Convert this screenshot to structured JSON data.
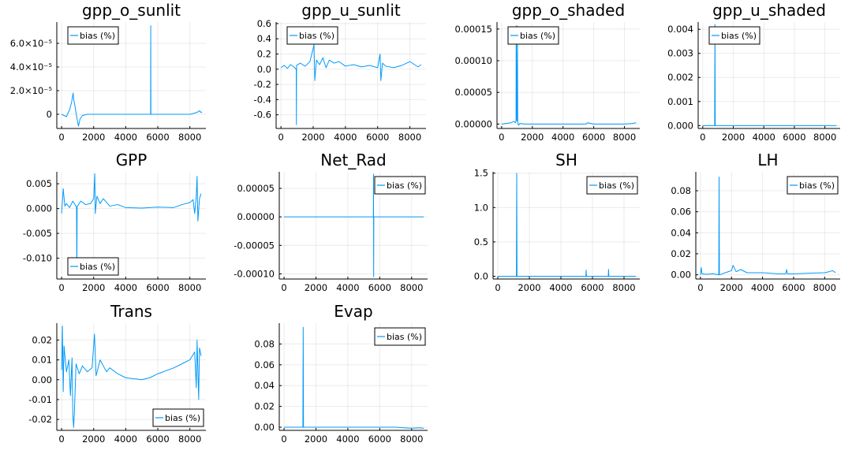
{
  "colors": {
    "series": "#009AFA",
    "axis": "#000000",
    "grid": "#E6E6E6"
  },
  "chart_data": [
    {
      "type": "line",
      "title": "gpp_o_sunlit",
      "legend_position": "top-left",
      "xlim": [
        -300,
        9000
      ],
      "ylim": [
        -1.2e-05,
        7.8e-05
      ],
      "xticks": [
        0,
        2000,
        4000,
        6000,
        8000
      ],
      "xtick_labels": [
        "0",
        "2000",
        "4000",
        "6000",
        "8000"
      ],
      "yticks": [
        0,
        2e-05,
        4e-05,
        6e-05
      ],
      "ytick_labels": [
        "0",
        "2.0×10⁻⁵",
        "4.0×10⁻⁵",
        "6.0×10⁻⁵"
      ],
      "series": [
        {
          "name": "bias (%)",
          "x": [
            0,
            300,
            500,
            620,
            680,
            720,
            760,
            820,
            880,
            950,
            1050,
            1150,
            1300,
            1600,
            2000,
            3000,
            4000,
            5000,
            5550,
            5560,
            5570,
            6000,
            7000,
            8000,
            8300,
            8500,
            8600,
            8700,
            8760
          ],
          "y": [
            0,
            -2e-06,
            4e-06,
            1e-05,
            1.5e-05,
            1.8e-05,
            1.2e-05,
            8e-06,
            3e-06,
            -3e-06,
            -1e-05,
            -4e-06,
            -1e-06,
            0,
            0,
            0,
            0,
            0,
            0,
            7.5e-05,
            0,
            0,
            0,
            0,
            1e-06,
            2e-06,
            3e-06,
            1.5e-06,
            2e-06
          ]
        }
      ]
    },
    {
      "type": "line",
      "title": "gpp_u_sunlit",
      "legend_position": "top-left",
      "xlim": [
        -300,
        9000
      ],
      "ylim": [
        -0.78,
        0.62
      ],
      "xticks": [
        0,
        2000,
        4000,
        6000,
        8000
      ],
      "xtick_labels": [
        "0",
        "2000",
        "4000",
        "6000",
        "8000"
      ],
      "yticks": [
        -0.6,
        -0.4,
        -0.2,
        0,
        0.2,
        0.4,
        0.6
      ],
      "ytick_labels": [
        "-0.6",
        "-0.4",
        "-0.2",
        "0.0",
        "0.2",
        "0.4",
        "0.6"
      ],
      "series": [
        {
          "name": "bias (%)",
          "x": [
            0,
            200,
            400,
            600,
            800,
            950,
            960,
            970,
            1200,
            1500,
            1800,
            2050,
            2100,
            2200,
            2400,
            2600,
            2800,
            3000,
            3300,
            3600,
            4000,
            4500,
            5000,
            5500,
            6000,
            6150,
            6200,
            6300,
            6500,
            7000,
            7500,
            8000,
            8500,
            8700
          ],
          "y": [
            0.02,
            0.05,
            0.01,
            0.06,
            0.03,
            0.0,
            -0.73,
            0.05,
            0.08,
            0.04,
            0.1,
            0.32,
            -0.15,
            0.12,
            0.06,
            0.15,
            0.02,
            0.12,
            0.08,
            0.1,
            0.04,
            0.06,
            0.03,
            0.05,
            0.02,
            0.2,
            -0.15,
            0.08,
            0.04,
            0.02,
            0.05,
            0.1,
            0.03,
            0.06
          ]
        }
      ]
    },
    {
      "type": "line",
      "title": "gpp_o_shaded",
      "legend_position": "top-left",
      "xlim": [
        -300,
        9000
      ],
      "ylim": [
        -7e-06,
        0.000161
      ],
      "xticks": [
        0,
        2000,
        4000,
        6000,
        8000
      ],
      "xtick_labels": [
        "0",
        "2000",
        "4000",
        "6000",
        "8000"
      ],
      "yticks": [
        0,
        5e-05,
        0.0001,
        0.00015
      ],
      "ytick_labels": [
        "0.00000",
        "0.00005",
        "0.00010",
        "0.00015"
      ],
      "series": [
        {
          "name": "bias (%)",
          "x": [
            0,
            300,
            600,
            800,
            900,
            940,
            950,
            980,
            1000,
            1030,
            1050,
            1100,
            1200,
            1500,
            2000,
            3000,
            4000,
            5000,
            5500,
            5600,
            6000,
            7000,
            8000,
            8500,
            8760
          ],
          "y": [
            0,
            1e-06,
            2e-06,
            4e-06,
            2e-06,
            5e-06,
            0.000155,
            2e-05,
            5e-06,
            0.000155,
            3e-06,
            -2e-06,
            1e-06,
            0,
            0,
            0,
            0,
            0,
            0,
            2e-06,
            0,
            0,
            0,
            1e-06,
            2e-06
          ]
        }
      ]
    },
    {
      "type": "line",
      "title": "gpp_u_shaded",
      "legend_position": "top-left",
      "xlim": [
        -300,
        9000
      ],
      "ylim": [
        -0.00012,
        0.0043
      ],
      "xticks": [
        0,
        2000,
        4000,
        6000,
        8000
      ],
      "xtick_labels": [
        "0",
        "2000",
        "4000",
        "6000",
        "8000"
      ],
      "yticks": [
        0,
        0.001,
        0.002,
        0.003,
        0.004
      ],
      "ytick_labels": [
        "0.000",
        "0.001",
        "0.002",
        "0.003",
        "0.004"
      ],
      "series": [
        {
          "name": "bias (%)",
          "x": [
            0,
            400,
            780,
            800,
            820,
            1200,
            2000,
            4000,
            6000,
            8000,
            8760
          ],
          "y": [
            0,
            0,
            0,
            0.0042,
            0,
            0,
            0,
            0,
            0,
            0,
            0
          ]
        }
      ]
    },
    {
      "type": "line",
      "title": "GPP",
      "legend_position": "bottom-left",
      "xlim": [
        -300,
        9000
      ],
      "ylim": [
        -0.0142,
        0.0074
      ],
      "xticks": [
        0,
        2000,
        4000,
        6000,
        8000
      ],
      "xtick_labels": [
        "0",
        "2000",
        "4000",
        "6000",
        "8000"
      ],
      "yticks": [
        -0.01,
        -0.005,
        0,
        0.005
      ],
      "ytick_labels": [
        "-0.010",
        "-0.005",
        "0.000",
        "0.005"
      ],
      "series": [
        {
          "name": "bias (%)",
          "x": [
            0,
            100,
            200,
            300,
            500,
            700,
            930,
            950,
            970,
            1200,
            1500,
            1800,
            2000,
            2070,
            2100,
            2200,
            2400,
            2600,
            3000,
            3500,
            4000,
            5000,
            6000,
            7000,
            7500,
            8000,
            8200,
            8300,
            8400,
            8450,
            8500,
            8600,
            8700
          ],
          "y": [
            -0.001,
            0.004,
            0.0005,
            0.001,
            0.0002,
            0.0015,
            0.0003,
            -0.013,
            0.0004,
            0.0015,
            0.0008,
            0.001,
            0.002,
            0.007,
            -0.001,
            0.0025,
            0.001,
            0.002,
            0.0005,
            0.0008,
            0.0002,
            0.0001,
            0.0003,
            0.0002,
            0.0008,
            0.0012,
            0.0018,
            -0.001,
            0.0025,
            0.0065,
            -0.0025,
            0.002,
            0.003
          ]
        }
      ]
    },
    {
      "type": "line",
      "title": "Net_Rad",
      "legend_position": "top-right",
      "xlim": [
        -300,
        9000
      ],
      "ylim": [
        -0.000109,
        7.9e-05
      ],
      "xticks": [
        0,
        2000,
        4000,
        6000,
        8000
      ],
      "xtick_labels": [
        "0",
        "2000",
        "4000",
        "6000",
        "8000"
      ],
      "yticks": [
        -0.0001,
        -5e-05,
        0,
        5e-05
      ],
      "ytick_labels": [
        "-0.00010",
        "-0.00005",
        "0.00000",
        "0.00005"
      ],
      "series": [
        {
          "name": "bias (%)",
          "x": [
            0,
            2000,
            4000,
            5600,
            5610,
            5620,
            5630,
            6000,
            8000,
            8760
          ],
          "y": [
            0,
            0,
            0,
            0,
            7.5e-05,
            -0.000105,
            0,
            0,
            0,
            0
          ]
        }
      ]
    },
    {
      "type": "line",
      "title": "SH",
      "legend_position": "top-right",
      "xlim": [
        -300,
        9000
      ],
      "ylim": [
        -0.04,
        1.52
      ],
      "xticks": [
        0,
        2000,
        4000,
        6000,
        8000
      ],
      "xtick_labels": [
        "0",
        "2000",
        "4000",
        "6000",
        "8000"
      ],
      "yticks": [
        0,
        0.5,
        1.0,
        1.5
      ],
      "ytick_labels": [
        "0.0",
        "0.5",
        "1.0",
        "1.5"
      ],
      "series": [
        {
          "name": "bias (%)",
          "x": [
            0,
            600,
            1180,
            1200,
            1220,
            2000,
            4000,
            5580,
            5600,
            5620,
            6000,
            7000,
            7020,
            7040,
            8000,
            8760
          ],
          "y": [
            0,
            0,
            0,
            1.5,
            0,
            0,
            0,
            0,
            0.09,
            0,
            0,
            0,
            0.1,
            0,
            0,
            0
          ]
        }
      ]
    },
    {
      "type": "line",
      "title": "LH",
      "legend_position": "top-right",
      "xlim": [
        -300,
        9000
      ],
      "ylim": [
        -0.004,
        0.098
      ],
      "xticks": [
        0,
        2000,
        4000,
        6000,
        8000
      ],
      "xtick_labels": [
        "0",
        "2000",
        "4000",
        "6000",
        "8000"
      ],
      "yticks": [
        0,
        0.02,
        0.04,
        0.06,
        0.08
      ],
      "ytick_labels": [
        "0.00",
        "0.02",
        "0.04",
        "0.06",
        "0.08"
      ],
      "series": [
        {
          "name": "bias (%)",
          "x": [
            0,
            50,
            100,
            400,
            800,
            1180,
            1200,
            1220,
            1600,
            2000,
            2100,
            2300,
            2600,
            3000,
            4000,
            5000,
            5500,
            5550,
            5600,
            6000,
            7000,
            8000,
            8300,
            8500,
            8700
          ],
          "y": [
            0,
            0.007,
            0.001,
            0.0005,
            0.001,
            0,
            0.093,
            0,
            0.002,
            0.004,
            0.009,
            0.003,
            0.005,
            0.002,
            0.002,
            0.001,
            0.001,
            0.005,
            0.001,
            0.001,
            0.0015,
            0.002,
            0.003,
            0.004,
            0.002
          ]
        }
      ]
    },
    {
      "type": "line",
      "title": "Trans",
      "legend_position": "bottom-right",
      "xlim": [
        -300,
        9000
      ],
      "ylim": [
        -0.0255,
        0.0285
      ],
      "xticks": [
        0,
        2000,
        4000,
        6000,
        8000
      ],
      "xtick_labels": [
        "0",
        "2000",
        "4000",
        "6000",
        "8000"
      ],
      "yticks": [
        -0.02,
        -0.01,
        0,
        0.01,
        0.02
      ],
      "ytick_labels": [
        "-0.02",
        "-0.01",
        "0.00",
        "0.01",
        "0.02"
      ],
      "series": [
        {
          "name": "bias (%)",
          "x": [
            0,
            50,
            100,
            150,
            300,
            450,
            550,
            650,
            700,
            750,
            800,
            900,
            1100,
            1300,
            1600,
            1900,
            2050,
            2150,
            2400,
            2800,
            3000,
            3500,
            4000,
            5000,
            5500,
            6000,
            7000,
            7500,
            8000,
            8300,
            8400,
            8450,
            8550,
            8600,
            8700
          ],
          "y": [
            0.005,
            0.027,
            -0.006,
            0.017,
            0.004,
            0.01,
            -0.008,
            0.011,
            -0.018,
            -0.024,
            -0.016,
            0.008,
            0.003,
            0.007,
            0.004,
            0.006,
            0.023,
            0.002,
            0.01,
            0.004,
            0.006,
            0.003,
            0.001,
            0.0,
            0.001,
            0.003,
            0.006,
            0.008,
            0.01,
            0.014,
            -0.004,
            0.02,
            -0.01,
            0.016,
            0.012
          ]
        }
      ]
    },
    {
      "type": "line",
      "title": "Evap",
      "legend_position": "top-right",
      "xlim": [
        -300,
        9000
      ],
      "ylim": [
        -0.003,
        0.1
      ],
      "xticks": [
        0,
        2000,
        4000,
        6000,
        8000
      ],
      "xtick_labels": [
        "0",
        "2000",
        "4000",
        "6000",
        "8000"
      ],
      "yticks": [
        0,
        0.02,
        0.04,
        0.06,
        0.08
      ],
      "ytick_labels": [
        "0.00",
        "0.02",
        "0.04",
        "0.06",
        "0.08"
      ],
      "series": [
        {
          "name": "bias (%)",
          "x": [
            0,
            500,
            1180,
            1200,
            1220,
            2000,
            4000,
            5500,
            6000,
            7000,
            8000,
            8500,
            8760
          ],
          "y": [
            0,
            0,
            0,
            0.096,
            0,
            0,
            0,
            0,
            0,
            0,
            -0.001,
            -0.0005,
            -0.001
          ]
        }
      ]
    }
  ]
}
